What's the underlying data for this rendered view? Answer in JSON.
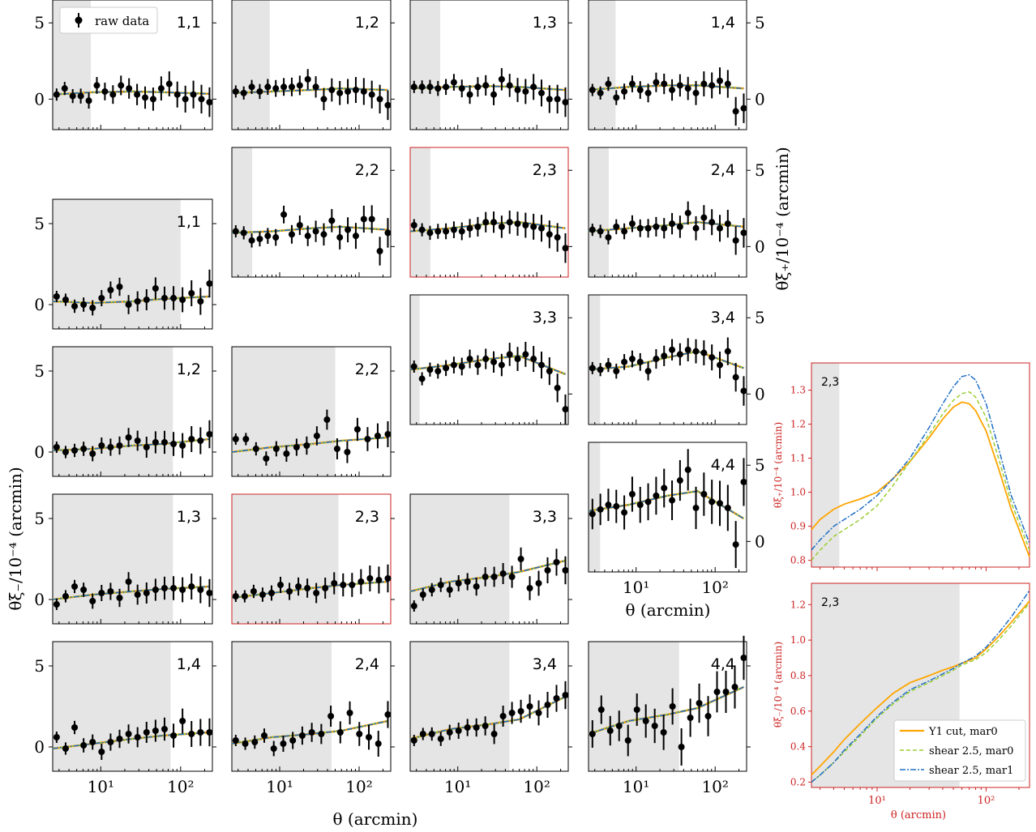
{
  "colors": {
    "raw": "#000000",
    "y1": "#ffa500",
    "shear_mar0": "#9acd32",
    "shear_mar1": "#1f6fc5",
    "mask": "#e5e5e5",
    "highlight": "#cc2222"
  },
  "labels": {
    "raw_data": "raw data",
    "xi_plus_axis": "θξ₊/10⁻⁴  (arcmin)",
    "xi_minus_axis": "θξ₋/10⁻⁴  (arcmin)",
    "theta_axis": "θ (arcmin)"
  },
  "tick_labels": {
    "left": [
      "0",
      "5"
    ],
    "right": [
      "0",
      "5"
    ],
    "x": [
      "10¹",
      "10²"
    ]
  },
  "chart_data": [
    {
      "type": "scatter",
      "group": "xi_plus_grid",
      "xscale": "log",
      "xlim": [
        2.5,
        250
      ],
      "ylim": [
        -2,
        6.5
      ],
      "series_names": [
        "raw data"
      ],
      "legend_position": "top-left",
      "panels": [
        {
          "bin": "1,1",
          "mask_max": 7.5,
          "model": [
            0.3,
            0.45,
            0.5,
            0.45,
            0.35
          ],
          "y": [
            0.3,
            0.7,
            0.2,
            0.2,
            -0.1,
            0.9,
            0.5,
            0.3,
            0.9,
            0.7,
            0.3,
            0.1,
            0.0,
            0.7,
            1.0,
            0.3,
            0.0,
            0.3,
            0.0,
            -0.2
          ]
        },
        {
          "bin": "1,2",
          "mask_max": 7.5,
          "model": [
            0.4,
            0.5,
            0.6,
            0.7,
            0.6
          ],
          "y": [
            0.5,
            0.4,
            0.8,
            0.5,
            0.8,
            0.7,
            0.8,
            0.8,
            0.9,
            1.3,
            0.8,
            0.0,
            0.6,
            0.4,
            0.5,
            0.6,
            0.5,
            0.3,
            0.0,
            -0.4
          ]
        },
        {
          "bin": "1,3",
          "mask_max": 6.0,
          "model": [
            0.7,
            0.8,
            0.85,
            0.8,
            0.6
          ],
          "y": [
            0.8,
            0.8,
            0.8,
            0.7,
            0.8,
            1.1,
            0.7,
            0.3,
            0.8,
            0.9,
            0.3,
            1.3,
            0.9,
            0.6,
            0.5,
            0.8,
            0.4,
            0.0,
            0.0,
            -0.2
          ]
        },
        {
          "bin": "1,4",
          "mask_max": 5.5,
          "model": [
            0.6,
            0.8,
            0.9,
            0.9,
            0.7
          ],
          "y": [
            0.6,
            0.4,
            1.0,
            0.1,
            0.5,
            1.0,
            0.6,
            0.4,
            1.1,
            1.0,
            0.6,
            0.9,
            0.7,
            0.4,
            1.0,
            0.9,
            1.2,
            1.0,
            -0.8,
            -0.6
          ]
        },
        {
          "bin": "2,2",
          "mask_max": 4.5,
          "model": [
            0.9,
            1.0,
            1.2,
            1.3,
            1.1
          ],
          "y": [
            1.0,
            0.9,
            0.4,
            0.5,
            0.7,
            0.6,
            2.1,
            0.8,
            1.4,
            0.7,
            1.0,
            0.8,
            1.7,
            0.6,
            1.1,
            0.7,
            1.8,
            1.8,
            -0.3,
            0.9
          ]
        },
        {
          "bin": "2,3",
          "mask_max": 4.5,
          "highlight": true,
          "model": [
            1.0,
            1.2,
            1.5,
            1.6,
            1.2
          ],
          "y": [
            1.4,
            1.1,
            0.9,
            1.0,
            1.0,
            1.1,
            1.0,
            1.2,
            1.3,
            1.6,
            1.6,
            1.3,
            1.6,
            1.5,
            1.4,
            1.3,
            1.2,
            0.8,
            0.6,
            -0.1
          ]
        },
        {
          "bin": "2,4",
          "mask_max": 4.5,
          "model": [
            1.0,
            1.2,
            1.4,
            1.6,
            1.3
          ],
          "y": [
            1.1,
            1.0,
            0.6,
            1.3,
            1.0,
            1.5,
            1.2,
            1.2,
            1.3,
            1.2,
            1.5,
            1.3,
            2.2,
            1.2,
            1.9,
            1.6,
            1.2,
            1.5,
            0.4,
            0.9
          ]
        },
        {
          "bin": "3,3",
          "mask_max": 3.3,
          "model": [
            1.6,
            1.9,
            2.3,
            2.5,
            1.3
          ],
          "y": [
            1.8,
            1.0,
            1.6,
            1.5,
            1.7,
            1.9,
            1.8,
            2.3,
            1.9,
            2.3,
            2.1,
            1.9,
            2.6,
            2.3,
            2.6,
            2.3,
            1.9,
            1.5,
            0.4,
            -1.0
          ]
        },
        {
          "bin": "3,4",
          "mask_max": 3.5,
          "model": [
            1.6,
            1.8,
            2.4,
            2.8,
            1.7
          ],
          "y": [
            1.7,
            1.6,
            1.9,
            1.5,
            2.1,
            2.3,
            2.1,
            1.5,
            2.3,
            2.5,
            2.9,
            2.6,
            2.9,
            2.8,
            2.7,
            2.4,
            1.9,
            2.8,
            1.1,
            0.2
          ]
        },
        {
          "bin": "4,4",
          "mask_max": 3.5,
          "model": [
            2.0,
            2.4,
            3.0,
            3.3,
            1.5
          ],
          "y": [
            1.8,
            2.1,
            2.4,
            2.3,
            1.9,
            3.1,
            2.4,
            2.6,
            3.0,
            3.5,
            2.7,
            4.0,
            4.7,
            2.2,
            3.1,
            2.6,
            2.5,
            2.2,
            -0.2,
            3.9
          ]
        }
      ]
    },
    {
      "type": "scatter",
      "group": "xi_minus_grid",
      "xscale": "log",
      "xlim": [
        2.5,
        250
      ],
      "ylim": [
        -1.5,
        6.5
      ],
      "series_names": [
        "raw data"
      ],
      "panels": [
        {
          "bin": "1,1",
          "mask_max": 100,
          "model": [
            0.2,
            0.1,
            0.2,
            0.35,
            0.5
          ],
          "y": [
            0.5,
            0.3,
            -0.1,
            0.0,
            -0.2,
            0.4,
            0.9,
            1.1,
            0.0,
            0.2,
            0.3,
            1.0,
            0.4,
            0.4,
            0.3,
            0.7,
            0.2,
            1.3
          ]
        },
        {
          "bin": "1,2",
          "mask_max": 80,
          "model": [
            0.1,
            0.2,
            0.4,
            0.5,
            0.8
          ],
          "y": [
            0.3,
            0.0,
            0.1,
            0.2,
            -0.1,
            0.4,
            0.3,
            0.4,
            0.9,
            0.7,
            0.3,
            0.6,
            0.6,
            0.5,
            0.4,
            0.8,
            0.7,
            1.1
          ]
        },
        {
          "bin": "2,2",
          "mask_max": 50,
          "model": [
            0.0,
            0.3,
            0.5,
            0.7,
            0.9
          ],
          "y": [
            0.8,
            0.8,
            0.2,
            -0.4,
            0.2,
            -0.1,
            0.3,
            0.4,
            1.0,
            2.0,
            0.2,
            0.0,
            1.4,
            0.8,
            1.0,
            1.1
          ]
        },
        {
          "bin": "1,3",
          "mask_max": 80,
          "model": [
            0.0,
            0.3,
            0.5,
            0.65,
            0.8
          ],
          "y": [
            -0.3,
            0.2,
            0.8,
            0.6,
            -0.1,
            0.4,
            0.5,
            0.1,
            1.1,
            0.3,
            0.4,
            0.6,
            0.7,
            0.7,
            0.6,
            0.8,
            0.6,
            0.4
          ]
        },
        {
          "bin": "2,3",
          "mask_max": 55,
          "highlight": true,
          "model": [
            0.1,
            0.4,
            0.7,
            0.9,
            1.1
          ],
          "y": [
            0.2,
            0.2,
            0.5,
            0.3,
            0.4,
            0.9,
            0.5,
            0.8,
            0.7,
            0.4,
            0.7,
            1.0,
            0.9,
            0.9,
            1.1,
            1.3,
            1.2,
            1.3
          ]
        },
        {
          "bin": "3,3",
          "mask_max": 45,
          "model": [
            0.5,
            1.1,
            1.4,
            1.7,
            2.4
          ],
          "y": [
            -0.4,
            0.3,
            0.6,
            0.9,
            0.6,
            1.0,
            1.1,
            0.8,
            1.4,
            1.4,
            1.6,
            1.4,
            2.5,
            0.7,
            1.0,
            1.8,
            2.3,
            1.8
          ]
        },
        {
          "bin": "1,4",
          "mask_max": 75,
          "model": [
            -0.1,
            0.2,
            0.5,
            0.7,
            0.9
          ],
          "y": [
            0.6,
            -0.1,
            1.2,
            0.1,
            0.3,
            -0.3,
            0.3,
            0.5,
            0.8,
            0.6,
            0.9,
            1.0,
            1.1,
            0.7,
            1.6,
            0.8,
            0.9,
            0.9
          ]
        },
        {
          "bin": "2,4",
          "mask_max": 45,
          "model": [
            0.2,
            0.6,
            0.8,
            1.0,
            1.6
          ],
          "y": [
            0.4,
            0.2,
            0.3,
            0.7,
            -0.1,
            0.2,
            0.4,
            0.7,
            0.9,
            0.8,
            1.9,
            0.9,
            2.1,
            0.8,
            0.6,
            0.2,
            2.0
          ]
        },
        {
          "bin": "3,4",
          "mask_max": 45,
          "model": [
            0.5,
            1.1,
            1.4,
            1.7,
            3.1
          ],
          "y": [
            0.4,
            0.8,
            0.8,
            0.5,
            0.9,
            1.0,
            1.2,
            1.2,
            1.3,
            0.8,
            1.9,
            2.1,
            2.2,
            2.5,
            2.1,
            2.6,
            3.0,
            3.2
          ]
        },
        {
          "bin": "4,4",
          "mask_max": 35,
          "model": [
            0.8,
            1.6,
            2.0,
            2.4,
            3.7
          ],
          "y": [
            0.8,
            2.3,
            1.0,
            1.3,
            0.4,
            2.3,
            1.6,
            1.3,
            0.9,
            2.5,
            0.0,
            1.8,
            2.7,
            1.9,
            3.4,
            3.4,
            3.7,
            5.5
          ]
        }
      ]
    },
    {
      "type": "line",
      "group": "zoom_xi_plus",
      "bin": "2,3",
      "xscale": "log",
      "xlim": [
        2.5,
        250
      ],
      "ylim": [
        0.78,
        1.38
      ],
      "yticks": [
        "0.8",
        "0.9",
        "1.0",
        "1.1",
        "1.2",
        "1.3"
      ],
      "mask_max": 4.5,
      "x": [
        2.5,
        3,
        4,
        5,
        7,
        10,
        14,
        20,
        30,
        40,
        50,
        60,
        70,
        80,
        100,
        130,
        170,
        250
      ],
      "series": [
        {
          "name": "Y1 cut,  mar0",
          "values": [
            0.89,
            0.92,
            0.95,
            0.965,
            0.98,
            1.0,
            1.04,
            1.09,
            1.16,
            1.215,
            1.25,
            1.265,
            1.26,
            1.24,
            1.18,
            1.07,
            0.95,
            0.81
          ]
        },
        {
          "name": "shear 2.5,  mar0",
          "values": [
            0.8,
            0.83,
            0.87,
            0.89,
            0.92,
            0.96,
            1.02,
            1.09,
            1.17,
            1.23,
            1.27,
            1.29,
            1.295,
            1.28,
            1.22,
            1.1,
            0.97,
            0.83
          ]
        },
        {
          "name": "shear 2.5,  mar1",
          "values": [
            0.83,
            0.86,
            0.9,
            0.92,
            0.95,
            0.99,
            1.04,
            1.1,
            1.19,
            1.26,
            1.31,
            1.34,
            1.345,
            1.33,
            1.26,
            1.13,
            0.99,
            0.85
          ]
        }
      ]
    },
    {
      "type": "line",
      "group": "zoom_xi_minus",
      "bin": "2,3",
      "xscale": "log",
      "xlim": [
        2.5,
        250
      ],
      "ylim": [
        0.17,
        1.32
      ],
      "yticks": [
        "0.2",
        "0.4",
        "0.6",
        "0.8",
        "1.0",
        "1.2"
      ],
      "mask_max": 57,
      "legend_position": "bottom-right",
      "x": [
        2.5,
        3,
        4,
        5,
        7,
        10,
        14,
        20,
        30,
        40,
        50,
        60,
        80,
        100,
        130,
        170,
        250
      ],
      "series": [
        {
          "name": "Y1 cut,  mar0",
          "values": [
            0.24,
            0.29,
            0.37,
            0.44,
            0.53,
            0.62,
            0.7,
            0.76,
            0.8,
            0.83,
            0.85,
            0.87,
            0.9,
            0.95,
            1.02,
            1.1,
            1.22
          ]
        },
        {
          "name": "shear 2.5,  mar0",
          "values": [
            0.2,
            0.24,
            0.31,
            0.37,
            0.46,
            0.56,
            0.64,
            0.71,
            0.76,
            0.8,
            0.83,
            0.86,
            0.89,
            0.93,
            1.0,
            1.08,
            1.21
          ]
        },
        {
          "name": "shear 2.5,  mar1",
          "values": [
            0.2,
            0.24,
            0.31,
            0.38,
            0.47,
            0.57,
            0.65,
            0.72,
            0.77,
            0.81,
            0.84,
            0.87,
            0.91,
            0.96,
            1.04,
            1.13,
            1.28
          ]
        }
      ]
    }
  ]
}
